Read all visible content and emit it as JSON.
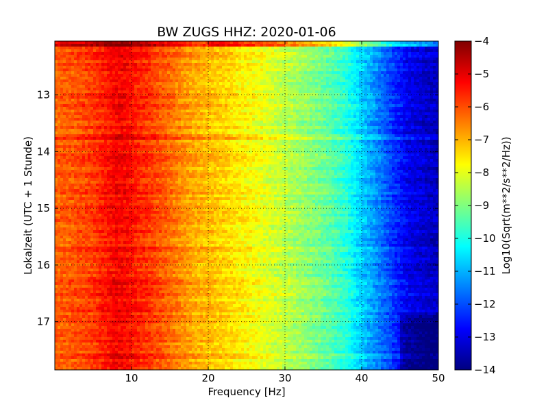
{
  "chart_data": {
    "type": "heatmap",
    "title": "BW ZUGS HHZ: 2020-01-06",
    "xlabel": "Frequency [Hz]",
    "ylabel": "Lokalzeit (UTC + 1 Stunde)",
    "xlim": [
      0,
      50
    ],
    "ylim": [
      12.05,
      17.85
    ],
    "y_inverted": true,
    "x_ticks": [
      10,
      20,
      30,
      40,
      50
    ],
    "x_tick_labels": [
      "10",
      "20",
      "30",
      "40",
      "50"
    ],
    "y_ticks": [
      13,
      14,
      15,
      16,
      17
    ],
    "y_tick_labels": [
      "13",
      "14",
      "15",
      "16",
      "17"
    ],
    "grid": true,
    "colormap": "jet",
    "colorbar": {
      "label": "Log10(Sqrt(m**2/s**2/Hz))",
      "range": [
        -14,
        -4
      ],
      "ticks": [
        -4,
        -5,
        -6,
        -7,
        -8,
        -9,
        -10,
        -11,
        -12,
        -13,
        -14
      ],
      "tick_labels": [
        "−4",
        "−5",
        "−6",
        "−7",
        "−8",
        "−9",
        "−10",
        "−11",
        "−12",
        "−13",
        "−14"
      ]
    },
    "spectrum_profile": {
      "frequency_hz": [
        0,
        2,
        5,
        7,
        8,
        9,
        10,
        11,
        12,
        14,
        16,
        18,
        20,
        22,
        24,
        26,
        28,
        30,
        32,
        34,
        36,
        38,
        40,
        42,
        44,
        46,
        48,
        50
      ],
      "log10_psd": [
        -6.2,
        -6.1,
        -5.8,
        -5.4,
        -5.2,
        -5.2,
        -5.4,
        -5.6,
        -5.7,
        -6.1,
        -6.5,
        -6.9,
        -7.1,
        -7.3,
        -7.6,
        -7.8,
        -8.1,
        -8.4,
        -8.7,
        -9.0,
        -9.4,
        -9.9,
        -10.7,
        -11.4,
        -12.2,
        -12.9,
        -13.2,
        -13.4
      ]
    },
    "features": [
      {
        "time_h": 12.1,
        "description": "saturated first time row: red at low frequency, cyan/blue at high frequency"
      },
      {
        "time_h": 13.75,
        "description": "thin enhanced band across frequencies"
      },
      {
        "time_h": 17.0,
        "description": "darker blue region above 45 Hz"
      }
    ]
  }
}
